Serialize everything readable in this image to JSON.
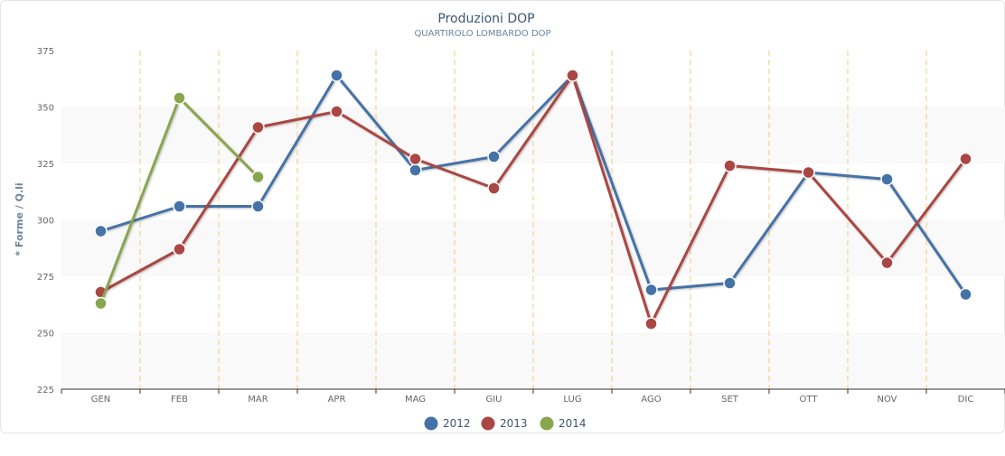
{
  "chart_data": {
    "type": "line",
    "title": "Produzioni DOP",
    "subtitle": "QUARTIROLO LOMBARDO DOP",
    "ylabel": "* Forme / Q.li",
    "xlabel": "",
    "ylim": [
      225,
      375
    ],
    "yticks": [
      225,
      250,
      275,
      300,
      325,
      350,
      375
    ],
    "categories": [
      "GEN",
      "FEB",
      "MAR",
      "APR",
      "MAG",
      "GIU",
      "LUG",
      "AGO",
      "SET",
      "OTT",
      "NOV",
      "DIC"
    ],
    "legend_position": "bottom-center",
    "series": [
      {
        "name": "2012",
        "color": "#4572a7",
        "values": [
          295,
          306,
          306,
          364,
          322,
          328,
          364,
          269,
          272,
          321,
          318,
          267
        ]
      },
      {
        "name": "2013",
        "color": "#aa4643",
        "values": [
          268,
          287,
          341,
          348,
          327,
          314,
          364,
          254,
          324,
          321,
          281,
          327
        ]
      },
      {
        "name": "2014",
        "color": "#89a54e",
        "values": [
          263,
          354,
          319,
          null,
          null,
          null,
          null,
          null,
          null,
          null,
          null,
          null
        ]
      }
    ]
  }
}
